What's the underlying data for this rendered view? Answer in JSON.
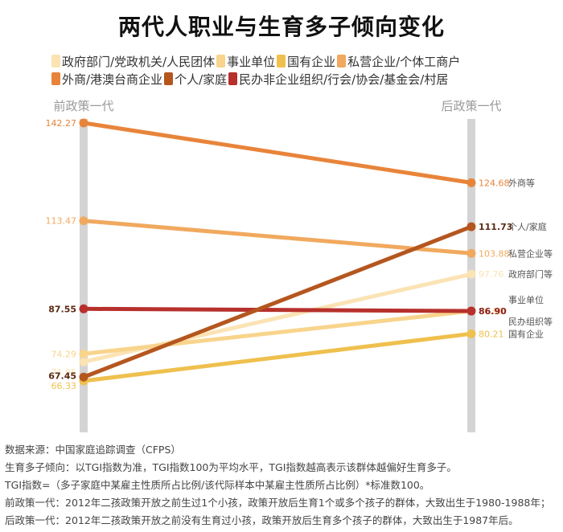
{
  "chart_data": {
    "type": "slope",
    "title": "两代人职业与生育多子倾向变化",
    "x_labels": [
      "前政策一代",
      "后政策一代"
    ],
    "series": [
      {
        "name": "政府部门/党政机关/人民团体",
        "short": "政府部门等",
        "color": "#fbe3b4",
        "values": [
          71.95,
          97.76
        ],
        "labels": [
          "71.95",
          "97.76"
        ]
      },
      {
        "name": "事业单位",
        "short": "事业单位",
        "color": "#f8d48c",
        "values": [
          74.29,
          86.9
        ],
        "labels": [
          "74.29",
          "86.90"
        ]
      },
      {
        "name": "国有企业",
        "short": "国有企业",
        "color": "#efc04e",
        "values": [
          66.33,
          80.21
        ],
        "labels": [
          "66.33",
          "80.21"
        ]
      },
      {
        "name": "私营企业/个体工商户",
        "short": "私营企业等",
        "color": "#f0a95e",
        "values": [
          113.47,
          103.88
        ],
        "labels": [
          "113.47",
          "103.88"
        ]
      },
      {
        "name": "外商/港澳台商企业",
        "short": "外商等",
        "color": "#e8843a",
        "values": [
          142.27,
          124.68
        ],
        "labels": [
          "142.27",
          "124.68"
        ]
      },
      {
        "name": "个人/家庭",
        "short": "个人/家庭",
        "color": "#b5561f",
        "values": [
          67.45,
          111.73
        ],
        "labels": [
          "67.45",
          "111.73"
        ]
      },
      {
        "name": "民办非企业组织/行会/协会/基金会/村居",
        "short": "民办组织等",
        "color": "#b7302c",
        "values": [
          87.55,
          86.9
        ],
        "labels": [
          "87.55",
          "86.90"
        ]
      }
    ],
    "y_range": [
      60,
      145
    ],
    "grid": false,
    "legend_position": "top"
  },
  "footer": {
    "source": "数据来源：中国家庭追踪调查（CFPS）",
    "line2": "生育多子倾向：以TGI指数为准，TGI指数100为平均水平，TGI指数越高表示该群体越偏好生育多子。",
    "line3": "TGI指数=（多子家庭中某雇主性质所占比例/该代际样本中某雇主性质所占比例）*标准数100。",
    "line4": "前政策一代：2012年二孩政策开放之前生过1个小孩，政策开放后生育1个或多个孩子的群体，大致出生于1980-1988年；",
    "line5": "后政策一代：2012年二孩政策开放之前没有生育过小孩，政策开放后生育多个孩子的群体，大致出生于1987年后。"
  }
}
